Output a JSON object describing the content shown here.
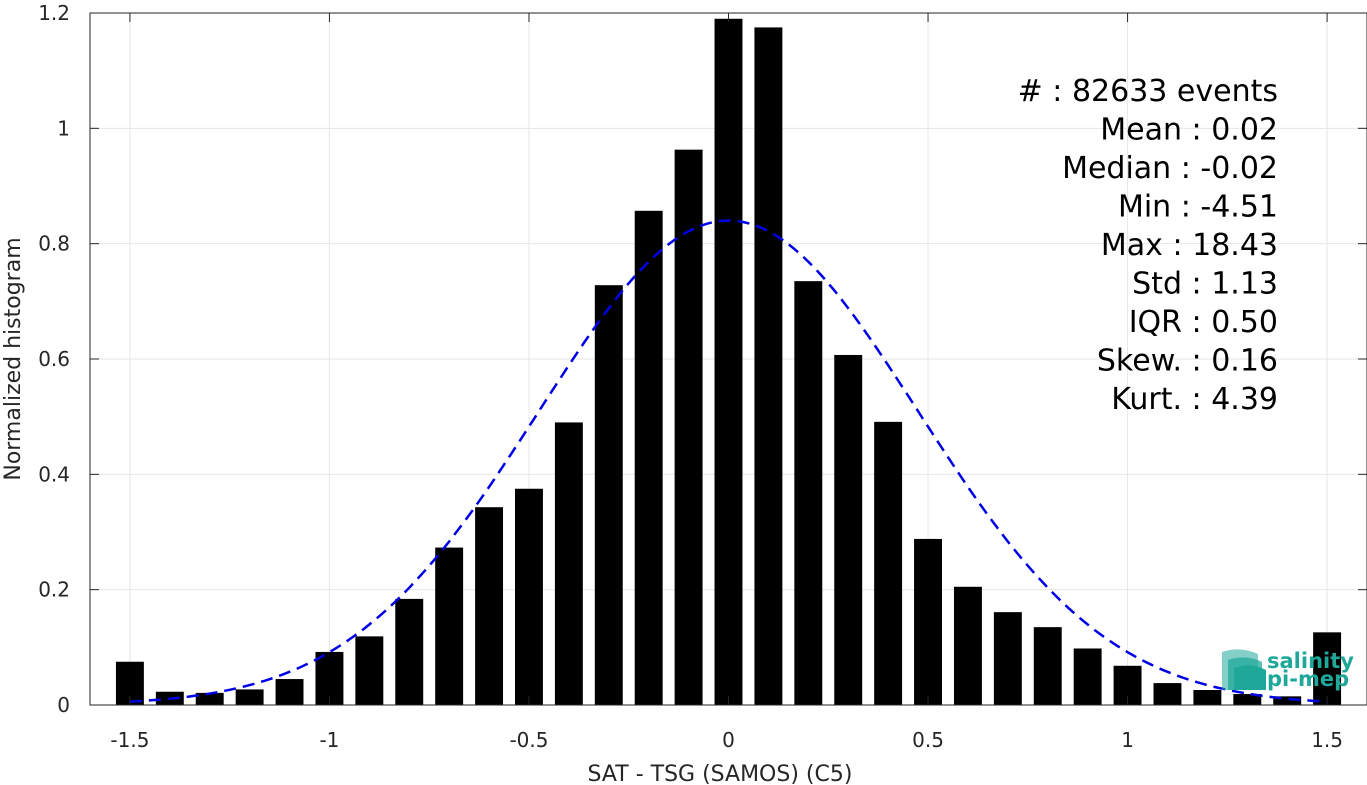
{
  "chart_data": {
    "type": "bar",
    "xlabel": "SAT - TSG (SAMOS) (C5)",
    "ylabel": "Normalized histogram",
    "xlim": [
      -1.6,
      1.6
    ],
    "ylim": [
      0,
      1.2
    ],
    "grid": true,
    "xticks": [
      -1.5,
      -1,
      -0.5,
      0,
      0.5,
      1,
      1.5
    ],
    "xtick_labels": [
      "-1.5",
      "-1",
      "-0.5",
      "0",
      "0.5",
      "1",
      "1.5"
    ],
    "yticks": [
      0,
      0.2,
      0.4,
      0.6,
      0.8,
      1,
      1.2
    ],
    "ytick_labels": [
      "0",
      "0.2",
      "0.4",
      "0.6",
      "0.8",
      "1",
      "1.2"
    ],
    "bar_color": "#000000",
    "fit_color": "#0000e6",
    "bins": [
      -1.5,
      -1.4,
      -1.3,
      -1.2,
      -1.1,
      -1.0,
      -0.9,
      -0.8,
      -0.7,
      -0.6,
      -0.5,
      -0.4,
      -0.3,
      -0.2,
      -0.1,
      0.0,
      0.1,
      0.2,
      0.3,
      0.4,
      0.5,
      0.6,
      0.7,
      0.8,
      0.9,
      1.0,
      1.1,
      1.2,
      1.3,
      1.4,
      1.5
    ],
    "values": [
      0.075,
      0.023,
      0.021,
      0.027,
      0.045,
      0.092,
      0.119,
      0.184,
      0.273,
      0.343,
      0.375,
      0.49,
      0.728,
      0.857,
      0.963,
      1.19,
      1.175,
      0.735,
      0.607,
      0.491,
      0.288,
      0.205,
      0.161,
      0.135,
      0.098,
      0.068,
      0.038,
      0.026,
      0.019,
      0.015,
      0.126
    ],
    "fit": {
      "type": "gaussian",
      "mean": 0.0,
      "std": 0.475,
      "peak": 0.84,
      "style": "dashed",
      "x_range": [
        -1.5,
        1.5
      ]
    },
    "stats": [
      {
        "label": "#  ",
        "value": ": 82633 events"
      },
      {
        "label": "Mean",
        "value": ": 0.02"
      },
      {
        "label": "Median",
        "value": ": -0.02"
      },
      {
        "label": "Min",
        "value": ": -4.51"
      },
      {
        "label": "Max",
        "value": ": 18.43"
      },
      {
        "label": "Std",
        "value": ": 1.13"
      },
      {
        "label": "IQR",
        "value": ": 0.50"
      },
      {
        "label": "Skew.",
        "value": ": 0.16"
      },
      {
        "label": "Kurt.",
        "value": ": 4.39"
      }
    ]
  },
  "logo": {
    "line1": "salinity",
    "line2": "pi-mep",
    "color": "#1fa89a"
  }
}
